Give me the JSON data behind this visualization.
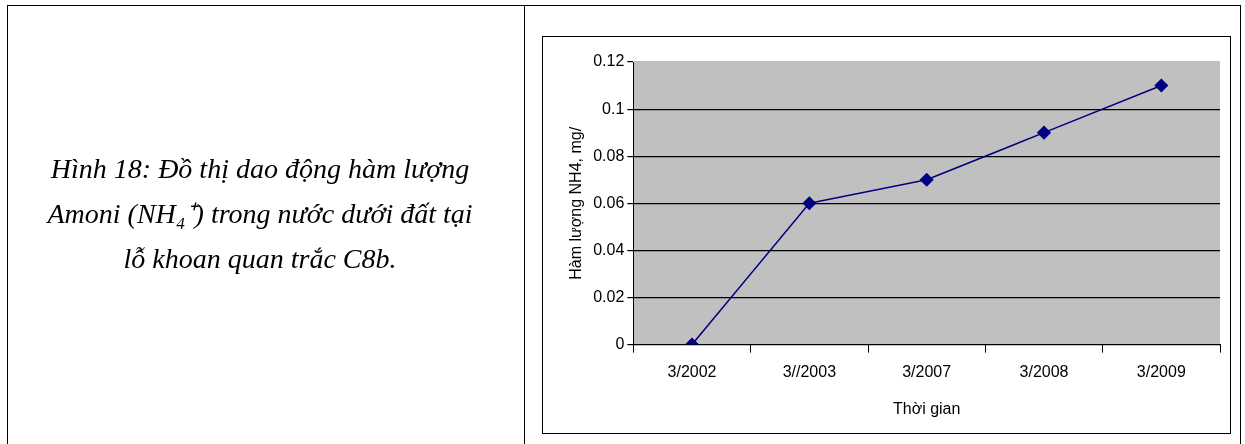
{
  "chart_data": {
    "type": "line",
    "title": "Hình 18: Đồ thị dao động hàm lượng Amoni (NH₄⁺) trong nước dưới đất tại lỗ khoan quan trắc C8b.",
    "xlabel": "Thời gian",
    "ylabel": "Hàm lượng NH4, mg/",
    "categories": [
      "3/2002",
      "3//2003",
      "3/2007",
      "3/2008",
      "3/2009"
    ],
    "series": [
      {
        "color": "#000080",
        "values": [
          0,
          0.06,
          0.07,
          0.09,
          0.11
        ]
      }
    ],
    "ylim": [
      0,
      0.12
    ],
    "yticks": [
      0,
      0.02,
      0.04,
      0.06,
      0.08,
      0.1,
      0.12
    ],
    "grid": "y",
    "legend": false,
    "marker": "diamond",
    "line_style": "solid"
  }
}
